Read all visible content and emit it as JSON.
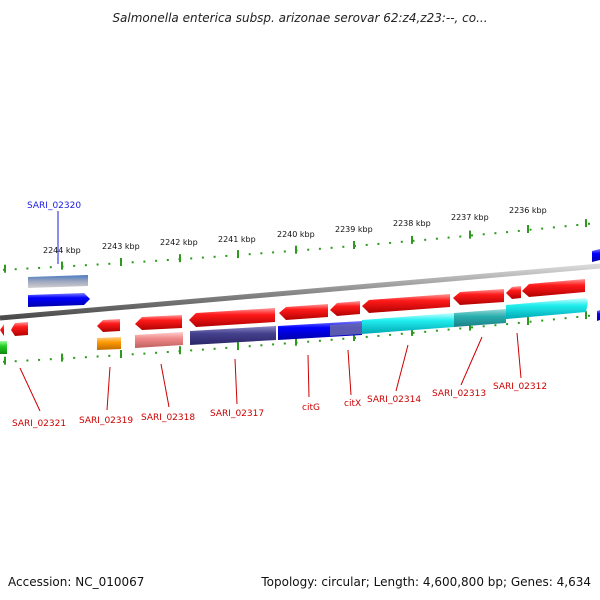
{
  "title": "Salmonella enterica subsp. arizonae serovar 62:z4,z23:--, co...",
  "footer": {
    "accession": "Accession: NC_010067",
    "topology": "Topology: circular; Length: 4,600,800 bp; Genes: 4,634"
  },
  "colors": {
    "forward_gene": "#ff0000",
    "forward_label": "#1a1ae6",
    "reverse_label": "#cc0000",
    "tick_green": "#2d9a1e",
    "backbone": "#8a8a8a"
  },
  "scale_labels": [
    "2244 kbp",
    "2243 kbp",
    "2242 kbp",
    "2241 kbp",
    "2240 kbp",
    "2239 kbp",
    "2238 kbp",
    "2237 kbp",
    "2236 kbp"
  ],
  "gene_labels_top": [
    "SARI_02320"
  ],
  "gene_labels_bottom": [
    "SARI_02321",
    "SARI_02319",
    "SARI_02318",
    "SARI_02317",
    "citG",
    "citX",
    "SARI_02314",
    "SARI_02313",
    "SARI_02312"
  ]
}
